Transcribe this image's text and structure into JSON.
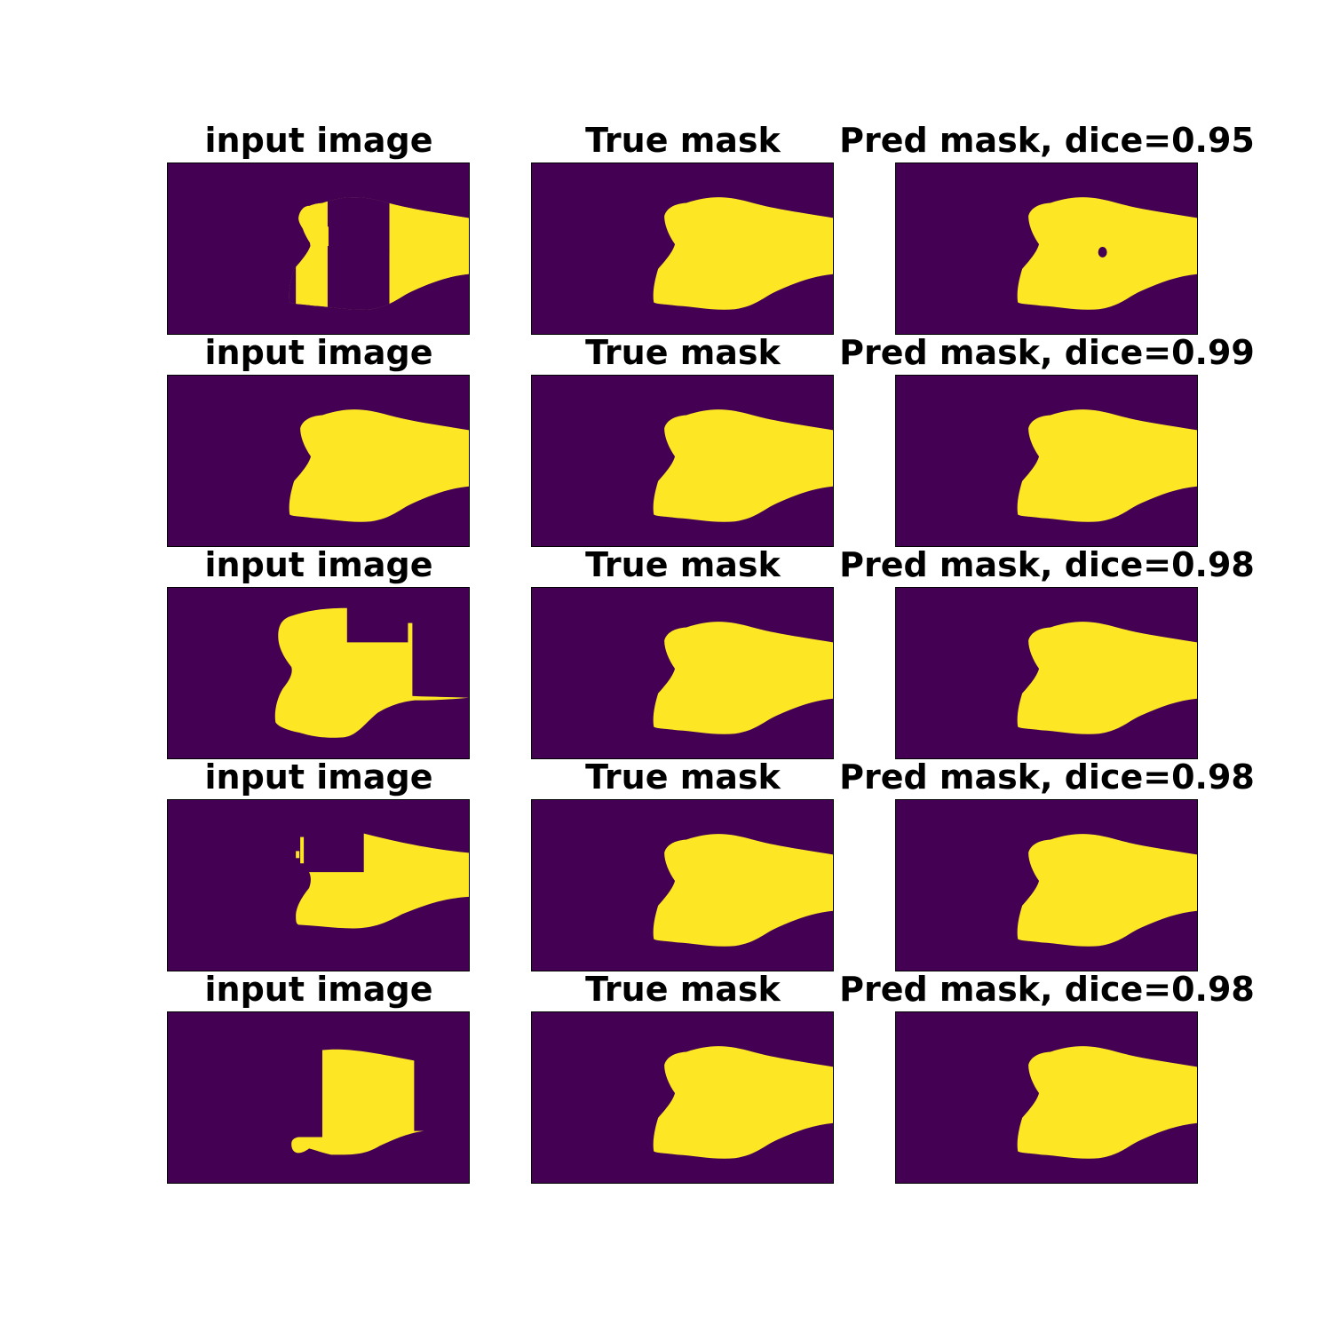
{
  "colors": {
    "background": "#440154",
    "foreground": "#fde725"
  },
  "rows": [
    {
      "input_title": "input image",
      "true_title": "True mask",
      "pred_title": "Pred mask, dice=0.95",
      "input_shape": "input-partial-cutout",
      "true_shape": "bone-mask",
      "pred_shape": "bone-mask-with-hole"
    },
    {
      "input_title": "input image",
      "true_title": "True mask",
      "pred_title": "Pred mask, dice=0.99",
      "input_shape": "bone-mask",
      "true_shape": "bone-mask",
      "pred_shape": "bone-mask"
    },
    {
      "input_title": "input image",
      "true_title": "True mask",
      "pred_title": "Pred mask, dice=0.98",
      "input_shape": "input-notched",
      "true_shape": "bone-mask",
      "pred_shape": "bone-mask"
    },
    {
      "input_title": "input image",
      "true_title": "True mask",
      "pred_title": "Pred mask, dice=0.98",
      "input_shape": "input-block-removed",
      "true_shape": "bone-mask",
      "pred_shape": "bone-mask"
    },
    {
      "input_title": "input image",
      "true_title": "True mask",
      "pred_title": "Pred mask, dice=0.98",
      "input_shape": "input-center-strip",
      "true_shape": "bone-mask",
      "pred_shape": "bone-mask"
    }
  ]
}
